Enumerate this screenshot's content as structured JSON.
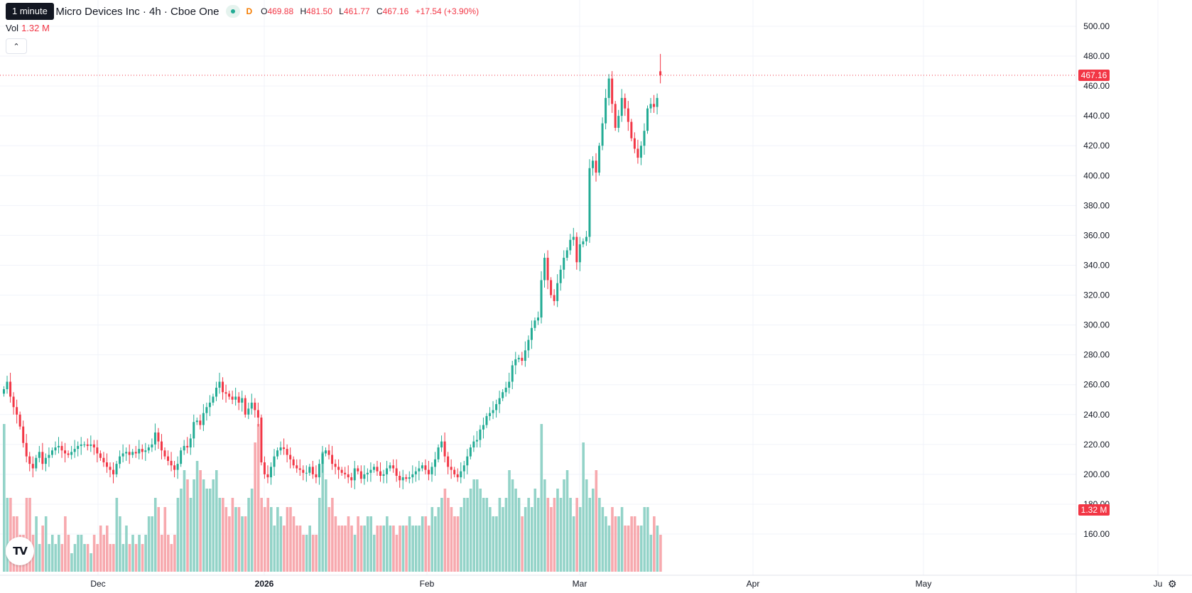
{
  "header": {
    "tooltip": "1 minute",
    "title": "Advanced Micro Devices Inc · 4h · Cboe One",
    "title_visible": "ced Micro Devices Inc · 4h · Cboe One",
    "flag": "D",
    "ohlc": {
      "o_label": "O",
      "o": "469.88",
      "h_label": "H",
      "h": "481.50",
      "l_label": "L",
      "l": "461.77",
      "c_label": "C",
      "c": "467.16",
      "change": "+17.54 (+3.90%)"
    }
  },
  "volume": {
    "label": "Vol",
    "value": "1.32 M"
  },
  "icons": {
    "collapse": "chevron-up-icon",
    "logo": "tradingview-logo",
    "settings": "gear-icon"
  },
  "logo_text": "TV",
  "colors": {
    "up": "#22ab94",
    "down": "#f23645",
    "up_vol": "#93d3c8",
    "down_vol": "#f7a9ae",
    "grid": "#f0f3fa"
  },
  "chart_data": {
    "type": "candlestick",
    "y_axis": {
      "ticks": [
        160,
        180,
        200,
        220,
        240,
        260,
        280,
        300,
        320,
        340,
        360,
        380,
        400,
        420,
        440,
        460,
        480,
        500
      ],
      "labels": [
        "160.00",
        "180.00",
        "200.00",
        "220.00",
        "240.00",
        "260.00",
        "280.00",
        "300.00",
        "320.00",
        "340.00",
        "360.00",
        "380.00",
        "400.00",
        "420.00",
        "440.00",
        "460.00",
        "480.00",
        "500.00"
      ]
    },
    "x_axis": {
      "labels": [
        "Dec",
        "2026",
        "Feb",
        "Mar",
        "Apr",
        "May",
        "Ju"
      ],
      "bold": [
        false,
        true,
        false,
        false,
        false,
        false,
        false
      ]
    },
    "last_price": 467.16,
    "last_price_label": "467.16",
    "volume_label": "1.32 M",
    "closes": [
      257,
      262,
      252,
      245,
      240,
      232,
      221,
      212,
      207,
      204,
      211,
      215,
      207,
      211,
      213,
      216,
      218,
      219,
      216,
      214,
      213,
      215,
      217,
      219,
      220,
      220,
      219,
      220,
      218,
      214,
      211,
      208,
      205,
      203,
      200,
      207,
      212,
      214,
      215,
      213,
      215,
      214,
      217,
      215,
      216,
      218,
      220,
      228,
      222,
      216,
      212,
      209,
      206,
      203,
      207,
      216,
      219,
      218,
      224,
      235,
      236,
      233,
      241,
      245,
      248,
      252,
      258,
      262,
      255,
      254,
      252,
      250,
      252,
      248,
      251,
      240,
      244,
      248,
      243,
      238,
      208,
      200,
      198,
      205,
      212,
      216,
      218,
      217,
      213,
      210,
      206,
      204,
      203,
      201,
      201,
      205,
      200,
      198,
      207,
      214,
      216,
      213,
      207,
      205,
      203,
      201,
      200,
      198,
      196,
      204,
      202,
      197,
      200,
      201,
      203,
      205,
      202,
      199,
      200,
      204,
      206,
      204,
      199,
      196,
      198,
      197,
      198,
      200,
      202,
      204,
      206,
      203,
      200,
      205,
      210,
      218,
      222,
      212,
      205,
      203,
      200,
      198,
      202,
      206,
      212,
      218,
      222,
      223,
      230,
      233,
      239,
      241,
      243,
      247,
      251,
      255,
      258,
      262,
      273,
      277,
      278,
      276,
      283,
      290,
      298,
      303,
      305,
      330,
      345,
      330,
      320,
      316,
      328,
      337,
      345,
      350,
      357,
      359,
      342,
      354,
      356,
      359,
      405,
      410,
      402,
      420,
      435,
      452,
      465,
      448,
      432,
      440,
      452,
      445,
      436,
      425,
      418,
      412,
      420,
      430,
      445,
      448,
      446,
      452,
      467.16
    ],
    "volumes": [
      240,
      200,
      200,
      190,
      190,
      180,
      180,
      200,
      200,
      180,
      190,
      175,
      185,
      190,
      175,
      180,
      175,
      180,
      175,
      190,
      180,
      170,
      175,
      180,
      180,
      175,
      175,
      170,
      180,
      175,
      185,
      180,
      185,
      175,
      175,
      200,
      190,
      175,
      185,
      175,
      180,
      175,
      180,
      175,
      180,
      190,
      190,
      200,
      195,
      180,
      195,
      180,
      175,
      180,
      200,
      205,
      215,
      210,
      200,
      210,
      220,
      215,
      210,
      205,
      205,
      210,
      215,
      200,
      200,
      195,
      190,
      200,
      195,
      195,
      190,
      190,
      200,
      205,
      230,
      240,
      200,
      195,
      200,
      195,
      185,
      195,
      190,
      185,
      195,
      195,
      190,
      185,
      185,
      180,
      180,
      185,
      180,
      180,
      200,
      225,
      210,
      195,
      200,
      190,
      185,
      185,
      185,
      190,
      185,
      180,
      190,
      185,
      185,
      190,
      190,
      180,
      185,
      185,
      185,
      190,
      185,
      185,
      180,
      185,
      185,
      185,
      190,
      185,
      185,
      185,
      190,
      190,
      185,
      195,
      190,
      195,
      200,
      205,
      200,
      195,
      190,
      190,
      195,
      200,
      200,
      205,
      210,
      210,
      205,
      200,
      200,
      195,
      190,
      190,
      200,
      195,
      200,
      215,
      210,
      205,
      200,
      190,
      195,
      200,
      195,
      205,
      200,
      240,
      210,
      200,
      195,
      200,
      205,
      200,
      210,
      215,
      200,
      190,
      200,
      195,
      230,
      210,
      200,
      205,
      215,
      200,
      195,
      190,
      185,
      195,
      190,
      190,
      195,
      185,
      185,
      190,
      190,
      185,
      185,
      195,
      195,
      180,
      190,
      185,
      180
    ]
  }
}
